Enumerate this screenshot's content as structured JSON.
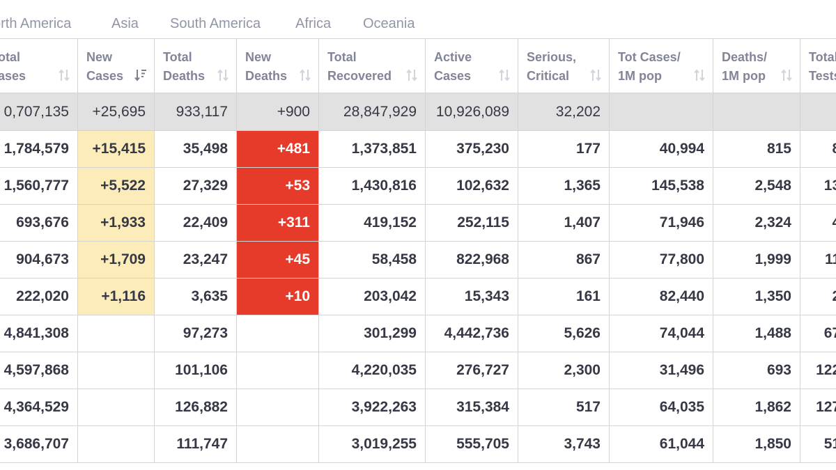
{
  "tabs": [
    "orth America",
    "Asia",
    "South America",
    "Africa",
    "Oceania"
  ],
  "headers": [
    [
      "otal",
      "ases"
    ],
    [
      "New",
      "Cases"
    ],
    [
      "Total",
      "Deaths"
    ],
    [
      "New",
      "Deaths"
    ],
    [
      "Total",
      "Recovered"
    ],
    [
      "Active",
      "Cases"
    ],
    [
      "Serious,",
      "Critical"
    ],
    [
      "Tot Cases/",
      "1M pop"
    ],
    [
      "Deaths/",
      "1M pop"
    ],
    [
      "Total",
      "Tests"
    ]
  ],
  "total_row": [
    "0,707,135",
    "+25,695",
    "933,117",
    "+900",
    "28,847,929",
    "10,926,089",
    "32,202",
    "",
    "",
    ""
  ],
  "rows": [
    [
      "1,784,579",
      "+15,415",
      "35,498",
      "+481",
      "1,373,851",
      "375,230",
      "177",
      "40,994",
      "815",
      "8,"
    ],
    [
      "1,560,777",
      "+5,522",
      "27,329",
      "+53",
      "1,430,816",
      "102,632",
      "1,365",
      "145,538",
      "2,548",
      "13,"
    ],
    [
      "693,676",
      "+1,933",
      "22,409",
      "+311",
      "419,152",
      "252,115",
      "1,407",
      "71,946",
      "2,324",
      "4,"
    ],
    [
      "904,673",
      "+1,709",
      "23,247",
      "+45",
      "58,458",
      "822,968",
      "867",
      "77,800",
      "1,999",
      "11,"
    ],
    [
      "222,020",
      "+1,116",
      "3,635",
      "+10",
      "203,042",
      "15,343",
      "161",
      "82,440",
      "1,350",
      "2,"
    ],
    [
      "4,841,308",
      "",
      "97,273",
      "",
      "301,299",
      "4,442,736",
      "5,626",
      "74,044",
      "1,488",
      "67,"
    ],
    [
      "4,597,868",
      "",
      "101,106",
      "",
      "4,220,035",
      "276,727",
      "2,300",
      "31,496",
      "693",
      "122,"
    ],
    [
      "4,364,529",
      "",
      "126,882",
      "",
      "3,922,263",
      "315,384",
      "517",
      "64,035",
      "1,862",
      "127,"
    ],
    [
      "3,686,707",
      "",
      "111,747",
      "",
      "3,019,255",
      "555,705",
      "3,743",
      "61,044",
      "1,850",
      "51,"
    ]
  ],
  "colors": {
    "new_cases_highlight": "#fbecb9",
    "new_deaths_highlight": "#e63a2a",
    "total_row_bg": "#e1e1e1",
    "header_text": "#828497",
    "tab_text": "#9096a8"
  },
  "icons": {
    "sort": "sort-arrows-icon",
    "sort_active": "sort-desc-icon"
  }
}
